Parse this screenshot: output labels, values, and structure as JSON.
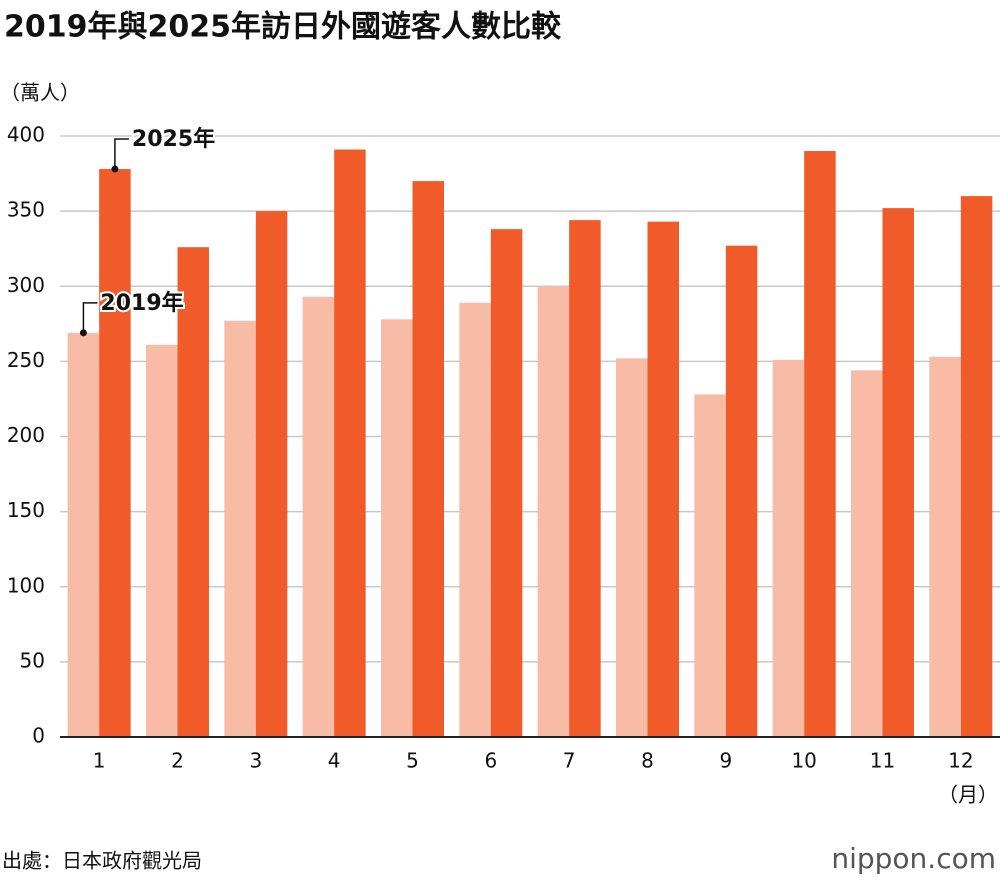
{
  "chart_data": {
    "type": "bar",
    "title": "2019年與2025年訪日外國遊客人數比較",
    "y_unit": "（萬人）",
    "x_unit": "（月）",
    "categories": [
      "1",
      "2",
      "3",
      "4",
      "5",
      "6",
      "7",
      "8",
      "9",
      "10",
      "11",
      "12"
    ],
    "series": [
      {
        "name": "2019年",
        "color": "#f7bba6",
        "values": [
          269,
          261,
          277,
          293,
          278,
          289,
          300,
          252,
          228,
          251,
          244,
          253
        ]
      },
      {
        "name": "2025年",
        "color": "#f15a29",
        "values": [
          378,
          326,
          350,
          391,
          370,
          338,
          344,
          343,
          327,
          390,
          352,
          360
        ]
      }
    ],
    "ylim": [
      0,
      400
    ],
    "yticks": [
      0,
      50,
      100,
      150,
      200,
      250,
      300,
      350,
      400
    ],
    "grid": true,
    "source": "出處：日本政府觀光局",
    "logo": "nippon.com"
  }
}
